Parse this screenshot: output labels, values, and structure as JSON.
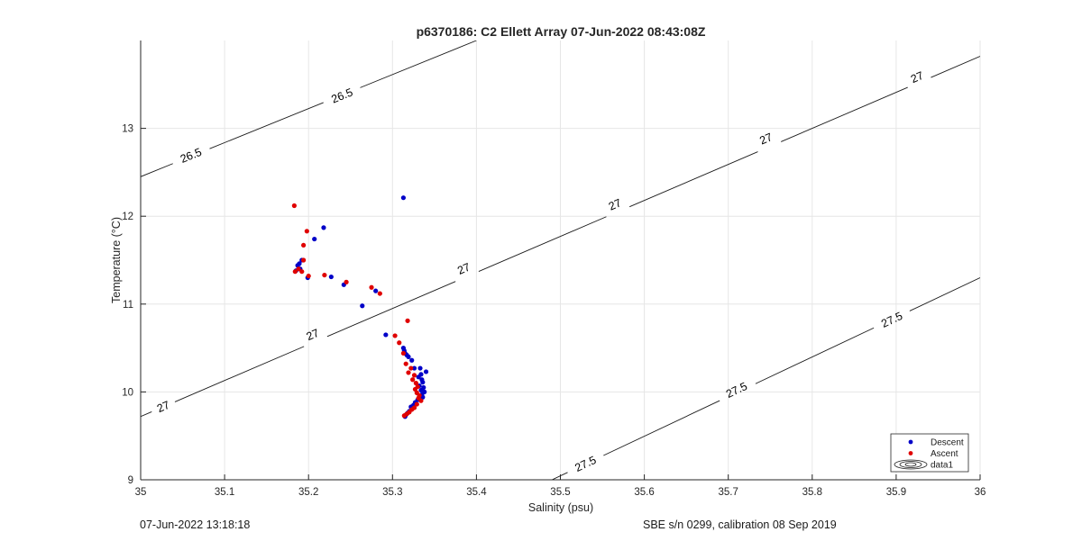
{
  "footer": {
    "left": "07-Jun-2022 13:18:18",
    "right": "SBE s/n 0299, calibration 08 Sep 2019"
  },
  "colors": {
    "descent": "#0000c8",
    "ascent": "#e00000",
    "contour": "#1a1a1a",
    "grid": "#e6e6e6"
  },
  "chart_data": {
    "type": "scatter",
    "title": "p6370186: C2 Ellett Array 07-Jun-2022 08:43:08Z",
    "xlabel": "Salinity (psu)",
    "ylabel": "Temperature (°C)",
    "xlim": [
      35,
      36
    ],
    "ylim": [
      9,
      14
    ],
    "xticks": [
      35,
      35.1,
      35.2,
      35.3,
      35.4,
      35.5,
      35.6,
      35.7,
      35.8,
      35.9,
      36
    ],
    "xtick_labels": [
      "35",
      "35.1",
      "35.2",
      "35.3",
      "35.4",
      "35.5",
      "35.6",
      "35.7",
      "35.8",
      "35.9",
      "36"
    ],
    "yticks": [
      9,
      10,
      11,
      12,
      13
    ],
    "ytick_labels": [
      "9",
      "10",
      "11",
      "12",
      "13"
    ],
    "grid": true,
    "legend_position": "bottom-right",
    "legend": [
      {
        "label": "Descent",
        "kind": "marker",
        "color": "#0000c8"
      },
      {
        "label": "Ascent",
        "kind": "marker",
        "color": "#e00000"
      },
      {
        "label": "data1",
        "kind": "contour",
        "color": "#1a1a1a"
      }
    ],
    "contours": [
      {
        "level": "26.5",
        "points": [
          [
            35.0,
            12.45
          ],
          [
            35.4,
            14.0
          ]
        ],
        "labels": [
          {
            "x": 35.06,
            "y": 12.69
          },
          {
            "x": 35.24,
            "y": 13.37
          }
        ]
      },
      {
        "level": "27",
        "points": [
          [
            35.0,
            9.72
          ],
          [
            36.0,
            13.82
          ]
        ],
        "labels": [
          {
            "x": 35.027,
            "y": 9.83
          },
          {
            "x": 35.205,
            "y": 10.65
          },
          {
            "x": 35.385,
            "y": 11.4
          },
          {
            "x": 35.565,
            "y": 12.13
          },
          {
            "x": 35.745,
            "y": 12.88
          },
          {
            "x": 35.925,
            "y": 13.58
          }
        ]
      },
      {
        "level": "27.5",
        "points": [
          [
            35.49,
            9.0
          ],
          [
            36.0,
            11.3
          ]
        ],
        "labels": [
          {
            "x": 35.53,
            "y": 9.18
          },
          {
            "x": 35.71,
            "y": 10.02
          },
          {
            "x": 35.895,
            "y": 10.82
          }
        ]
      }
    ],
    "series": [
      {
        "name": "Descent",
        "color": "#0000c8",
        "points": [
          [
            35.313,
            12.21
          ],
          [
            35.218,
            11.87
          ],
          [
            35.207,
            11.74
          ],
          [
            35.192,
            11.5
          ],
          [
            35.189,
            11.46
          ],
          [
            35.187,
            11.44
          ],
          [
            35.19,
            11.4
          ],
          [
            35.185,
            11.38
          ],
          [
            35.199,
            11.3
          ],
          [
            35.227,
            11.31
          ],
          [
            35.242,
            11.22
          ],
          [
            35.28,
            11.15
          ],
          [
            35.264,
            10.98
          ],
          [
            35.292,
            10.65
          ],
          [
            35.313,
            10.5
          ],
          [
            35.314,
            10.47
          ],
          [
            35.315,
            10.44
          ],
          [
            35.317,
            10.42
          ],
          [
            35.319,
            10.4
          ],
          [
            35.323,
            10.36
          ],
          [
            35.326,
            10.27
          ],
          [
            35.333,
            10.27
          ],
          [
            35.34,
            10.23
          ],
          [
            35.334,
            10.2
          ],
          [
            35.331,
            10.17
          ],
          [
            35.335,
            10.14
          ],
          [
            35.336,
            10.11
          ],
          [
            35.332,
            10.07
          ],
          [
            35.337,
            10.05
          ],
          [
            35.334,
            10.02
          ],
          [
            35.338,
            10.0
          ],
          [
            35.335,
            9.97
          ],
          [
            35.336,
            9.94
          ],
          [
            35.33,
            9.91
          ],
          [
            35.327,
            9.88
          ],
          [
            35.325,
            9.85
          ],
          [
            35.322,
            9.83
          ],
          [
            35.32,
            9.78
          ],
          [
            35.318,
            9.76
          ],
          [
            35.316,
            9.74
          ],
          [
            35.315,
            9.72
          ]
        ]
      },
      {
        "name": "Ascent",
        "color": "#e00000",
        "points": [
          [
            35.183,
            12.12
          ],
          [
            35.198,
            11.83
          ],
          [
            35.194,
            11.67
          ],
          [
            35.194,
            11.5
          ],
          [
            35.188,
            11.4
          ],
          [
            35.184,
            11.37
          ],
          [
            35.192,
            11.37
          ],
          [
            35.2,
            11.32
          ],
          [
            35.219,
            11.33
          ],
          [
            35.245,
            11.25
          ],
          [
            35.275,
            11.19
          ],
          [
            35.285,
            11.12
          ],
          [
            35.318,
            10.81
          ],
          [
            35.303,
            10.64
          ],
          [
            35.308,
            10.56
          ],
          [
            35.313,
            10.44
          ],
          [
            35.316,
            10.32
          ],
          [
            35.322,
            10.27
          ],
          [
            35.319,
            10.22
          ],
          [
            35.326,
            10.19
          ],
          [
            35.324,
            10.14
          ],
          [
            35.328,
            10.1
          ],
          [
            35.33,
            10.06
          ],
          [
            35.327,
            10.03
          ],
          [
            35.329,
            9.99
          ],
          [
            35.332,
            9.96
          ],
          [
            35.331,
            9.93
          ],
          [
            35.334,
            9.9
          ],
          [
            35.329,
            9.86
          ],
          [
            35.326,
            9.82
          ],
          [
            35.323,
            9.8
          ],
          [
            35.32,
            9.77
          ],
          [
            35.317,
            9.75
          ],
          [
            35.314,
            9.73
          ]
        ]
      }
    ]
  }
}
